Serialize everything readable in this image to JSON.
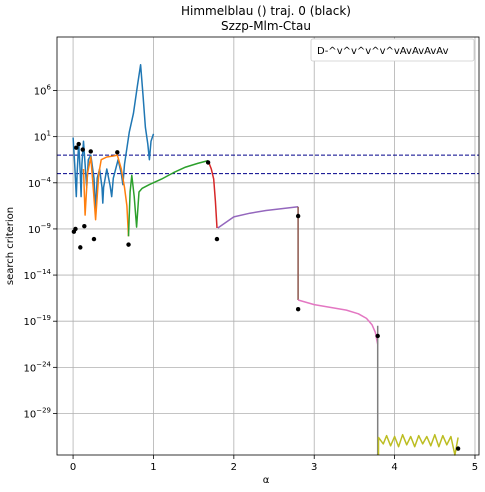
{
  "chart_data": {
    "type": "line",
    "title": "Himmelblau () traj. 0 (black)",
    "subtitle": "Szzp-Mlm-Ctau",
    "xlabel": "α",
    "ylabel": "search criterion",
    "yscale": "log",
    "xlim": [
      -0.2,
      5.05
    ],
    "ylim_log10": [
      -33.5,
      11.8
    ],
    "x_ticks": [
      0,
      1,
      2,
      3,
      4,
      5
    ],
    "x_tick_labels": [
      "0",
      "1",
      "2",
      "3",
      "4",
      "5"
    ],
    "y_ticks_log10": [
      6,
      1,
      -4,
      -9,
      -14,
      -19,
      -24,
      -29
    ],
    "y_tick_labels": [
      {
        "base": "10",
        "exp": "6"
      },
      {
        "base": "10",
        "exp": "1"
      },
      {
        "base": "10",
        "exp": "−4"
      },
      {
        "base": "10",
        "exp": "−9"
      },
      {
        "base": "10",
        "exp": "−14"
      },
      {
        "base": "10",
        "exp": "−19"
      },
      {
        "base": "10",
        "exp": "−24"
      },
      {
        "base": "10",
        "exp": "−29"
      }
    ],
    "grid": true,
    "legend": {
      "position": "top-right",
      "entries": [
        "D-^v^v^v^v^vAvAvAvAv"
      ]
    },
    "hlines": [
      {
        "y_log10": -1.0,
        "style": "dashed",
        "color": "#00008b"
      },
      {
        "y_log10": -3.0,
        "style": "dashed",
        "color": "#00008b"
      }
    ],
    "series": [
      {
        "color": "#1f77b4",
        "points": [
          [
            0.0,
            0.9
          ],
          [
            0.02,
            -2.0
          ],
          [
            0.04,
            -5.5
          ],
          [
            0.05,
            -3.0
          ],
          [
            0.07,
            0.3
          ],
          [
            0.09,
            -3.0
          ],
          [
            0.1,
            -5.5
          ],
          [
            0.11,
            -2.0
          ],
          [
            0.13,
            0.5
          ],
          [
            0.15,
            -2.0
          ],
          [
            0.17,
            -4.5
          ],
          [
            0.19,
            -1.5
          ],
          [
            0.22,
            -1.0
          ],
          [
            0.26,
            -3.5
          ],
          [
            0.28,
            -7.0
          ],
          [
            0.3,
            -3.5
          ],
          [
            0.33,
            -2.5
          ],
          [
            0.36,
            -4.5
          ],
          [
            0.37,
            -6.2
          ],
          [
            0.38,
            -4.5
          ],
          [
            0.42,
            -2.5
          ],
          [
            0.46,
            -4.3
          ],
          [
            0.48,
            -5.5
          ],
          [
            0.5,
            -3.5
          ],
          [
            0.56,
            -1.5
          ],
          [
            0.6,
            -3.0
          ],
          [
            0.62,
            -4.2
          ],
          [
            0.64,
            -2.0
          ],
          [
            0.7,
            1.5
          ],
          [
            0.75,
            3.5
          ],
          [
            0.8,
            6.5
          ],
          [
            0.84,
            8.8
          ],
          [
            0.87,
            5.5
          ],
          [
            0.9,
            2.0
          ],
          [
            0.93,
            0.2
          ],
          [
            0.95,
            -1.5
          ],
          [
            0.97,
            0.5
          ],
          [
            1.0,
            1.3
          ]
        ]
      },
      {
        "color": "#ff7f0e",
        "points": [
          [
            0.13,
            -2.5
          ],
          [
            0.15,
            -7.5
          ],
          [
            0.18,
            -3.0
          ],
          [
            0.22,
            -1.2
          ],
          [
            0.25,
            -4.5
          ],
          [
            0.28,
            -8.0
          ],
          [
            0.32,
            -3.0
          ],
          [
            0.35,
            -1.5
          ],
          [
            0.42,
            -1.2
          ],
          [
            0.5,
            -1.1
          ],
          [
            0.55,
            -1.0
          ],
          [
            0.6,
            -2.5
          ],
          [
            0.64,
            -4.5
          ],
          [
            0.67,
            -6.5
          ],
          [
            0.69,
            -9.8
          ]
        ]
      },
      {
        "color": "#2ca02c",
        "points": [
          [
            0.69,
            -9.8
          ],
          [
            0.71,
            -5.0
          ],
          [
            0.73,
            -3.2
          ],
          [
            0.76,
            -5.5
          ],
          [
            0.79,
            -8.8
          ],
          [
            0.82,
            -5.0
          ],
          [
            0.86,
            -4.6
          ],
          [
            0.95,
            -4.2
          ],
          [
            1.1,
            -3.6
          ],
          [
            1.25,
            -2.9
          ],
          [
            1.4,
            -2.3
          ],
          [
            1.55,
            -1.9
          ],
          [
            1.68,
            -1.6
          ]
        ]
      },
      {
        "color": "#d62728",
        "points": [
          [
            1.68,
            -1.6
          ],
          [
            1.72,
            -2.5
          ],
          [
            1.75,
            -3.6
          ],
          [
            1.77,
            -6.0
          ],
          [
            1.79,
            -8.9
          ]
        ]
      },
      {
        "color": "#9467bd",
        "points": [
          [
            1.8,
            -8.9
          ],
          [
            2.0,
            -7.7
          ],
          [
            2.2,
            -7.3
          ],
          [
            2.4,
            -7.0
          ],
          [
            2.6,
            -6.8
          ],
          [
            2.8,
            -6.6
          ]
        ]
      },
      {
        "color": "#8c564b",
        "points": [
          [
            2.8,
            -6.6
          ],
          [
            2.8,
            -16.7
          ]
        ]
      },
      {
        "color": "#e377c2",
        "points": [
          [
            2.8,
            -16.7
          ],
          [
            3.0,
            -17.2
          ],
          [
            3.2,
            -17.5
          ],
          [
            3.4,
            -17.8
          ],
          [
            3.55,
            -18.2
          ],
          [
            3.65,
            -18.7
          ],
          [
            3.72,
            -19.4
          ],
          [
            3.76,
            -20.2
          ],
          [
            3.79,
            -21.5
          ]
        ]
      },
      {
        "color": "#7f7f7f",
        "points": [
          [
            3.79,
            -19.5
          ],
          [
            3.79,
            -33.5
          ]
        ]
      },
      {
        "color": "#bcbd22",
        "points": [
          [
            3.8,
            -33.5
          ],
          [
            3.8,
            -31.6
          ],
          [
            3.86,
            -32.3
          ],
          [
            3.9,
            -31.4
          ],
          [
            3.95,
            -32.5
          ],
          [
            4.0,
            -31.5
          ],
          [
            4.05,
            -32.6
          ],
          [
            4.1,
            -31.3
          ],
          [
            4.15,
            -32.4
          ],
          [
            4.2,
            -31.5
          ],
          [
            4.25,
            -32.6
          ],
          [
            4.3,
            -31.4
          ],
          [
            4.35,
            -32.3
          ],
          [
            4.4,
            -31.5
          ],
          [
            4.45,
            -32.5
          ],
          [
            4.5,
            -31.3
          ],
          [
            4.55,
            -32.6
          ],
          [
            4.6,
            -31.4
          ],
          [
            4.65,
            -32.4
          ],
          [
            4.7,
            -31.5
          ],
          [
            4.75,
            -33.5
          ],
          [
            4.79,
            -31.6
          ]
        ]
      }
    ],
    "trajectory_points": [
      [
        0.01,
        -9.3
      ],
      [
        0.03,
        -9.0
      ],
      [
        0.04,
        -0.2
      ],
      [
        0.07,
        0.2
      ],
      [
        0.09,
        -11.0
      ],
      [
        0.12,
        -0.4
      ],
      [
        0.14,
        -8.7
      ],
      [
        0.22,
        -0.6
      ],
      [
        0.26,
        -10.1
      ],
      [
        0.55,
        -0.7
      ],
      [
        0.69,
        -10.7
      ],
      [
        1.68,
        -1.8
      ],
      [
        1.79,
        -10.1
      ],
      [
        2.8,
        -7.6
      ],
      [
        2.8,
        -17.7
      ],
      [
        3.79,
        -20.6
      ],
      [
        4.79,
        -32.8
      ]
    ]
  }
}
